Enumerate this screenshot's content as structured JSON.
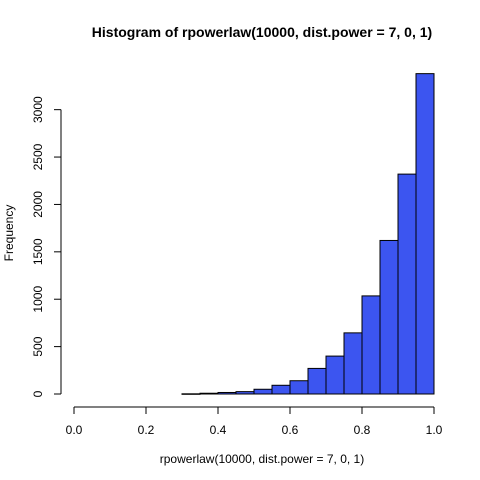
{
  "chart_data": {
    "type": "bar",
    "title": "Histogram of rpowerlaw(10000, dist.power = 7, 0, 1)",
    "xlabel": "rpowerlaw(10000, dist.power = 7, 0, 1)",
    "ylabel": "Frequency",
    "xlim": [
      0,
      1
    ],
    "ylim": [
      0,
      3380
    ],
    "x_ticks": [
      "0.0",
      "0.2",
      "0.4",
      "0.6",
      "0.8",
      "1.0"
    ],
    "y_ticks": [
      "0",
      "500",
      "1000",
      "1500",
      "2000",
      "2500",
      "3000"
    ],
    "bin_width": 0.05,
    "bins": [
      {
        "x0": 0.3,
        "x1": 0.35,
        "value": 2
      },
      {
        "x0": 0.35,
        "x1": 0.4,
        "value": 8
      },
      {
        "x0": 0.4,
        "x1": 0.45,
        "value": 16
      },
      {
        "x0": 0.45,
        "x1": 0.5,
        "value": 25
      },
      {
        "x0": 0.5,
        "x1": 0.55,
        "value": 50
      },
      {
        "x0": 0.55,
        "x1": 0.6,
        "value": 92
      },
      {
        "x0": 0.6,
        "x1": 0.65,
        "value": 140
      },
      {
        "x0": 0.65,
        "x1": 0.7,
        "value": 270
      },
      {
        "x0": 0.7,
        "x1": 0.75,
        "value": 400
      },
      {
        "x0": 0.75,
        "x1": 0.8,
        "value": 645
      },
      {
        "x0": 0.8,
        "x1": 0.85,
        "value": 1035
      },
      {
        "x0": 0.85,
        "x1": 0.9,
        "value": 1620
      },
      {
        "x0": 0.9,
        "x1": 0.95,
        "value": 2320
      },
      {
        "x0": 0.95,
        "x1": 1.0,
        "value": 3380
      }
    ],
    "bar_color": "#3c55f0",
    "bar_edge_color": "#000000",
    "grid": false
  }
}
